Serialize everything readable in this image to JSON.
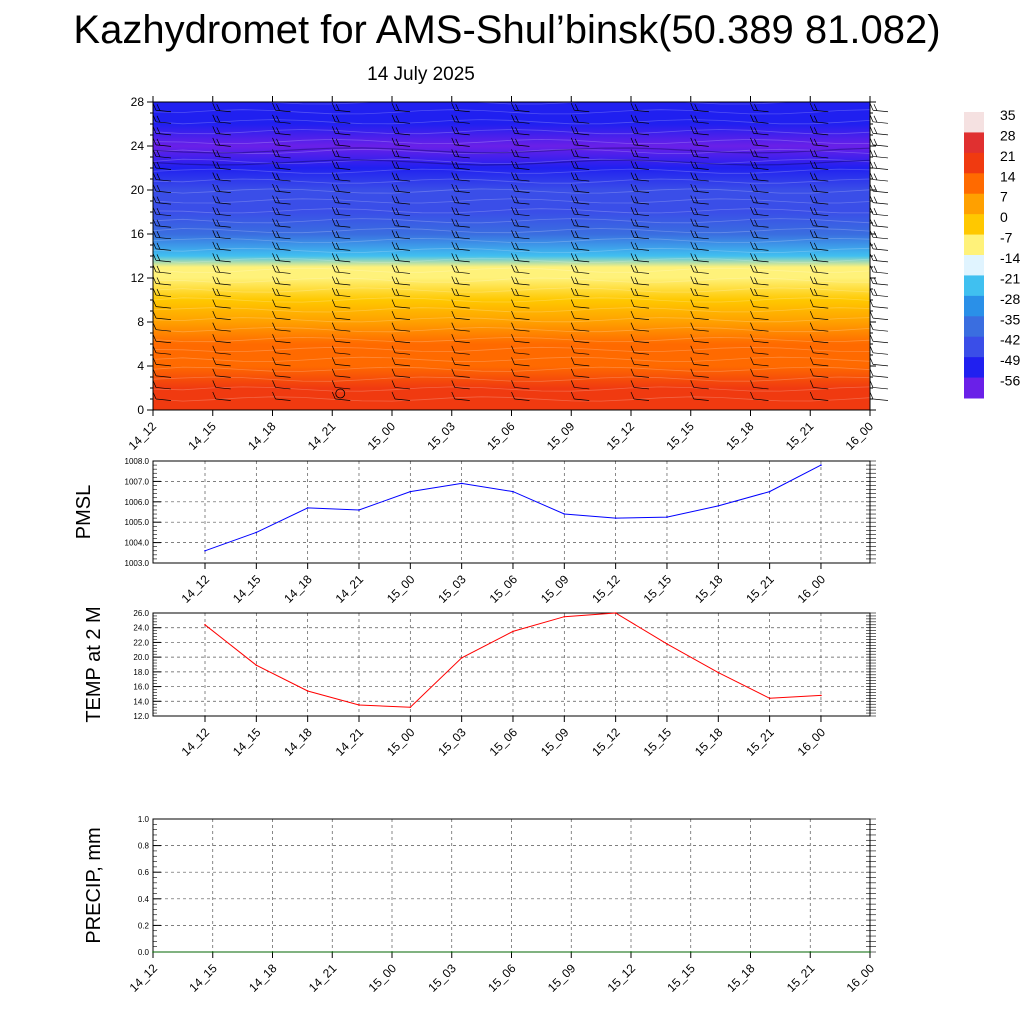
{
  "title": "Kazhydromet for AMS-Shul’binsk(50.389 81.082)",
  "subtitle": "14 July 2025",
  "colors": {
    "pmsl_line": "#0000ff",
    "temp_line": "#ff0000",
    "precip_line": "#006400",
    "grid": "#555555"
  },
  "chart_data": [
    {
      "type": "heatmap",
      "name": "temperature-height-section",
      "x": [
        "14_12",
        "14_15",
        "14_18",
        "14_21",
        "15_00",
        "15_03",
        "15_06",
        "15_09",
        "15_12",
        "15_15",
        "15_18",
        "15_21",
        "16_00"
      ],
      "ylim": [
        0,
        28
      ],
      "yticks": [
        0,
        4,
        8,
        12,
        16,
        20,
        24,
        28
      ],
      "colorbar_labels": [
        "35",
        "28",
        "21",
        "14",
        "7",
        "0",
        "-7",
        "-14",
        "-21",
        "-28",
        "-35",
        "-42",
        "-49",
        "-56"
      ],
      "color_scale": [
        {
          "value": 35,
          "color": "#f5e1e1"
        },
        {
          "value": 28,
          "color": "#e03030"
        },
        {
          "value": 21,
          "color": "#f03a10"
        },
        {
          "value": 14,
          "color": "#ff6a00"
        },
        {
          "value": 7,
          "color": "#ffa000"
        },
        {
          "value": 0,
          "color": "#ffc800"
        },
        {
          "value": -7,
          "color": "#fff27a"
        },
        {
          "value": -14,
          "color": "#e0f4ff"
        },
        {
          "value": -21,
          "color": "#40c0f0"
        },
        {
          "value": -28,
          "color": "#2a90e8"
        },
        {
          "value": -35,
          "color": "#3a6ee0"
        },
        {
          "value": -42,
          "color": "#3a4ee8"
        },
        {
          "value": -49,
          "color": "#2020f0"
        },
        {
          "value": -56,
          "color": "#6a20e8"
        }
      ],
      "profile": [
        {
          "height": 0,
          "temp": 24
        },
        {
          "height": 2,
          "temp": 22
        },
        {
          "height": 4,
          "temp": 17
        },
        {
          "height": 6,
          "temp": 12
        },
        {
          "height": 8,
          "temp": 6
        },
        {
          "height": 10,
          "temp": 2
        },
        {
          "height": 12,
          "temp": -4
        },
        {
          "height": 13,
          "temp": -10
        },
        {
          "height": 14,
          "temp": -20
        },
        {
          "height": 16,
          "temp": -36
        },
        {
          "height": 18,
          "temp": -42
        },
        {
          "height": 20,
          "temp": -43
        },
        {
          "height": 22,
          "temp": -47
        },
        {
          "height": 24,
          "temp": -55
        },
        {
          "height": 26,
          "temp": -52
        },
        {
          "height": 28,
          "temp": -50
        }
      ]
    },
    {
      "type": "line",
      "ylabel": "PMSL",
      "x": [
        "14_12",
        "14_15",
        "14_18",
        "14_21",
        "15_00",
        "15_03",
        "15_06",
        "15_09",
        "15_12",
        "15_15",
        "15_18",
        "15_21",
        "16_00"
      ],
      "values": [
        1003.6,
        1004.5,
        1005.7,
        1005.6,
        1006.5,
        1006.9,
        1006.5,
        1005.4,
        1005.2,
        1005.25,
        1005.8,
        1006.5,
        1007.8
      ],
      "ylim": [
        1003.0,
        1008.0
      ],
      "yticks": [
        "1003.0",
        "1004.0",
        "1005.0",
        "1006.0",
        "1007.0",
        "1008.0"
      ],
      "grid": true
    },
    {
      "type": "line",
      "ylabel": "TEMP at 2 M",
      "x": [
        "14_12",
        "14_15",
        "14_18",
        "14_21",
        "15_00",
        "15_03",
        "15_06",
        "15_09",
        "15_12",
        "15_15",
        "15_18",
        "15_21",
        "16_00"
      ],
      "values": [
        24.4,
        18.9,
        15.4,
        13.5,
        13.2,
        19.9,
        23.5,
        25.5,
        26.0,
        21.8,
        17.9,
        14.4,
        14.8
      ],
      "ylim": [
        12.0,
        26.0
      ],
      "yticks": [
        "12.0",
        "14.0",
        "16.0",
        "18.0",
        "20.0",
        "22.0",
        "24.0",
        "26.0"
      ],
      "grid": true
    },
    {
      "type": "line",
      "ylabel": "PRECIP, mm",
      "x": [
        "14_12",
        "14_15",
        "14_18",
        "14_21",
        "15_00",
        "15_03",
        "15_06",
        "15_09",
        "15_12",
        "15_15",
        "15_18",
        "15_21",
        "16_00"
      ],
      "values": [
        0,
        0,
        0,
        0,
        0,
        0,
        0,
        0,
        0,
        0,
        0,
        0,
        0
      ],
      "ylim": [
        0.0,
        1.0
      ],
      "yticks": [
        "0.0",
        "0.2",
        "0.4",
        "0.6",
        "0.8",
        "1.0"
      ],
      "grid": true
    }
  ]
}
